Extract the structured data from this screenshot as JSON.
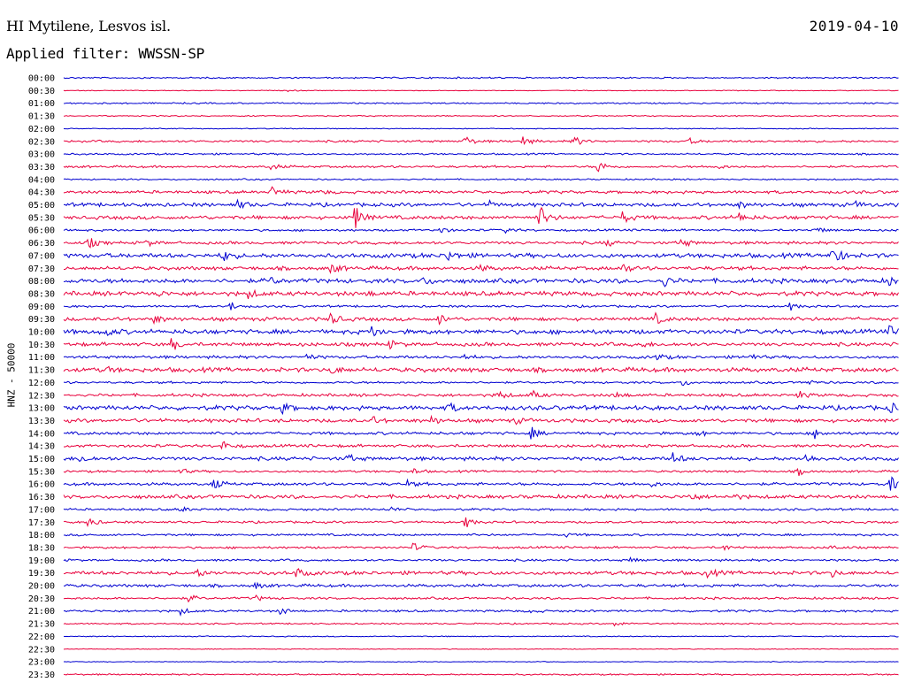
{
  "header": {
    "station": "HI Mytilene, Lesvos isl.",
    "date": "2019-04-10",
    "filter_label": "Applied filter: WWSSN-SP"
  },
  "axis": {
    "channel_label": "HNZ - 50000"
  },
  "colors": {
    "even_trace": "#0000d0",
    "odd_trace": "#e8003c"
  },
  "chart_data": {
    "type": "line",
    "title": "HI Mytilene, Lesvos isl.",
    "ylabel": "HNZ - 50000",
    "trace_interval_minutes": 30,
    "rows": [
      {
        "time": "00:00",
        "events": [],
        "noise": 1
      },
      {
        "time": "00:30",
        "events": [
          {
            "t": 0.27,
            "a": 1
          }
        ],
        "noise": 0.5
      },
      {
        "time": "01:00",
        "events": [],
        "noise": 1
      },
      {
        "time": "01:30",
        "events": [],
        "noise": 0.8
      },
      {
        "time": "02:00",
        "events": [],
        "noise": 0.6
      },
      {
        "time": "02:30",
        "events": [
          {
            "t": 0.48,
            "a": 6
          },
          {
            "t": 0.55,
            "a": 5
          },
          {
            "t": 0.61,
            "a": 7
          },
          {
            "t": 0.75,
            "a": 3
          }
        ],
        "noise": 1.5
      },
      {
        "time": "03:00",
        "events": [],
        "noise": 1.2
      },
      {
        "time": "03:30",
        "events": [
          {
            "t": 0.25,
            "a": 3
          },
          {
            "t": 0.64,
            "a": 7
          },
          {
            "t": 0.78,
            "a": 3
          }
        ],
        "noise": 1.5
      },
      {
        "time": "04:00",
        "events": [],
        "noise": 1
      },
      {
        "time": "04:30",
        "events": [
          {
            "t": 0.25,
            "a": 5
          },
          {
            "t": 0.31,
            "a": 2
          }
        ],
        "noise": 2
      },
      {
        "time": "05:00",
        "events": [
          {
            "t": 0.21,
            "a": 4
          },
          {
            "t": 0.51,
            "a": 3
          },
          {
            "t": 0.81,
            "a": 3
          },
          {
            "t": 0.95,
            "a": 3
          }
        ],
        "noise": 2.5
      },
      {
        "time": "05:30",
        "events": [
          {
            "t": 0.35,
            "a": 12
          },
          {
            "t": 0.57,
            "a": 13
          },
          {
            "t": 0.67,
            "a": 6
          },
          {
            "t": 0.81,
            "a": 5
          }
        ],
        "noise": 2.5
      },
      {
        "time": "06:00",
        "events": [
          {
            "t": 0.45,
            "a": 4
          },
          {
            "t": 0.53,
            "a": 3
          },
          {
            "t": 0.9,
            "a": 4
          }
        ],
        "noise": 1.5
      },
      {
        "time": "06:30",
        "events": [
          {
            "t": 0.03,
            "a": 6
          },
          {
            "t": 0.1,
            "a": 3
          },
          {
            "t": 0.65,
            "a": 4
          },
          {
            "t": 0.74,
            "a": 5
          }
        ],
        "noise": 2
      },
      {
        "time": "07:00",
        "events": [
          {
            "t": 0.19,
            "a": 7
          },
          {
            "t": 0.46,
            "a": 6
          },
          {
            "t": 0.92,
            "a": 14
          }
        ],
        "noise": 3
      },
      {
        "time": "07:30",
        "events": [
          {
            "t": 0.32,
            "a": 6
          },
          {
            "t": 0.5,
            "a": 3
          },
          {
            "t": 0.67,
            "a": 5
          }
        ],
        "noise": 2.5
      },
      {
        "time": "08:00",
        "events": [
          {
            "t": 0.25,
            "a": 3
          },
          {
            "t": 0.43,
            "a": 4
          },
          {
            "t": 0.72,
            "a": 5
          },
          {
            "t": 0.99,
            "a": 4
          }
        ],
        "noise": 3
      },
      {
        "time": "08:30",
        "events": [
          {
            "t": 0.11,
            "a": 3
          },
          {
            "t": 0.22,
            "a": 5
          },
          {
            "t": 0.36,
            "a": 3
          }
        ],
        "noise": 3
      },
      {
        "time": "09:00",
        "events": [
          {
            "t": 0.2,
            "a": 5
          },
          {
            "t": 0.87,
            "a": 4
          }
        ],
        "noise": 1.5
      },
      {
        "time": "09:30",
        "events": [
          {
            "t": 0.11,
            "a": 4
          },
          {
            "t": 0.32,
            "a": 7
          },
          {
            "t": 0.45,
            "a": 5
          },
          {
            "t": 0.71,
            "a": 5
          }
        ],
        "noise": 2.5
      },
      {
        "time": "10:00",
        "events": [
          {
            "t": 0.05,
            "a": 5
          },
          {
            "t": 0.37,
            "a": 5
          },
          {
            "t": 0.99,
            "a": 5
          }
        ],
        "noise": 3
      },
      {
        "time": "10:30",
        "events": [
          {
            "t": 0.13,
            "a": 6
          },
          {
            "t": 0.39,
            "a": 4
          },
          {
            "t": 0.69,
            "a": 3
          }
        ],
        "noise": 2.5
      },
      {
        "time": "11:00",
        "events": [
          {
            "t": 0.29,
            "a": 4
          },
          {
            "t": 0.48,
            "a": 3
          },
          {
            "t": 0.71,
            "a": 4
          },
          {
            "t": 0.82,
            "a": 5
          }
        ],
        "noise": 2
      },
      {
        "time": "11:30",
        "events": [
          {
            "t": 0.05,
            "a": 3
          },
          {
            "t": 0.32,
            "a": 5
          }
        ],
        "noise": 3
      },
      {
        "time": "12:00",
        "events": [
          {
            "t": 0.74,
            "a": 4
          },
          {
            "t": 0.89,
            "a": 4
          }
        ],
        "noise": 1.5
      },
      {
        "time": "12:30",
        "events": [
          {
            "t": 0.52,
            "a": 5
          },
          {
            "t": 0.56,
            "a": 5
          },
          {
            "t": 0.66,
            "a": 5
          },
          {
            "t": 0.88,
            "a": 4
          }
        ],
        "noise": 2
      },
      {
        "time": "13:00",
        "events": [
          {
            "t": 0.26,
            "a": 6
          },
          {
            "t": 0.46,
            "a": 5
          },
          {
            "t": 0.99,
            "a": 5
          }
        ],
        "noise": 3
      },
      {
        "time": "13:30",
        "events": [
          {
            "t": 0.37,
            "a": 4
          },
          {
            "t": 0.44,
            "a": 4
          },
          {
            "t": 0.54,
            "a": 3
          }
        ],
        "noise": 2.5
      },
      {
        "time": "14:00",
        "events": [
          {
            "t": 0.56,
            "a": 6
          },
          {
            "t": 0.76,
            "a": 3
          },
          {
            "t": 0.9,
            "a": 5
          }
        ],
        "noise": 2
      },
      {
        "time": "14:30",
        "events": [
          {
            "t": 0.19,
            "a": 5
          }
        ],
        "noise": 2
      },
      {
        "time": "15:00",
        "events": [
          {
            "t": 0.02,
            "a": 4
          },
          {
            "t": 0.34,
            "a": 4
          },
          {
            "t": 0.73,
            "a": 6
          },
          {
            "t": 0.89,
            "a": 5
          }
        ],
        "noise": 2.5
      },
      {
        "time": "15:30",
        "events": [
          {
            "t": 0.14,
            "a": 3
          },
          {
            "t": 0.42,
            "a": 3
          },
          {
            "t": 0.88,
            "a": 4
          }
        ],
        "noise": 1.5
      },
      {
        "time": "16:00",
        "events": [
          {
            "t": 0.18,
            "a": 6
          },
          {
            "t": 0.41,
            "a": 4
          },
          {
            "t": 0.7,
            "a": 4
          },
          {
            "t": 0.99,
            "a": 8
          }
        ],
        "noise": 2
      },
      {
        "time": "16:30",
        "events": [
          {
            "t": 0.75,
            "a": 4
          },
          {
            "t": 0.8,
            "a": 3
          }
        ],
        "noise": 2.5
      },
      {
        "time": "17:00",
        "events": [
          {
            "t": 0.14,
            "a": 3
          },
          {
            "t": 0.39,
            "a": 3
          }
        ],
        "noise": 1.5
      },
      {
        "time": "17:30",
        "events": [
          {
            "t": 0.03,
            "a": 5
          },
          {
            "t": 0.48,
            "a": 7
          }
        ],
        "noise": 1.5
      },
      {
        "time": "18:00",
        "events": [
          {
            "t": 0.6,
            "a": 2
          },
          {
            "t": 0.8,
            "a": 2
          }
        ],
        "noise": 1.5
      },
      {
        "time": "18:30",
        "events": [
          {
            "t": 0.42,
            "a": 4
          },
          {
            "t": 0.79,
            "a": 3
          },
          {
            "t": 0.92,
            "a": 3
          }
        ],
        "noise": 1.5
      },
      {
        "time": "19:00",
        "events": [
          {
            "t": 0.68,
            "a": 3
          }
        ],
        "noise": 1.5
      },
      {
        "time": "19:30",
        "events": [
          {
            "t": 0.16,
            "a": 4
          },
          {
            "t": 0.28,
            "a": 5
          },
          {
            "t": 0.77,
            "a": 5
          },
          {
            "t": 0.92,
            "a": 4
          }
        ],
        "noise": 2.5
      },
      {
        "time": "20:00",
        "events": [
          {
            "t": 0.23,
            "a": 3
          }
        ],
        "noise": 2
      },
      {
        "time": "20:30",
        "events": [
          {
            "t": 0.15,
            "a": 4
          },
          {
            "t": 0.23,
            "a": 3
          }
        ],
        "noise": 1.5
      },
      {
        "time": "21:00",
        "events": [
          {
            "t": 0.14,
            "a": 4
          },
          {
            "t": 0.26,
            "a": 4
          },
          {
            "t": 0.56,
            "a": 2
          }
        ],
        "noise": 1.5
      },
      {
        "time": "21:30",
        "events": [
          {
            "t": 0.66,
            "a": 4
          }
        ],
        "noise": 1
      },
      {
        "time": "22:00",
        "events": [],
        "noise": 0.7
      },
      {
        "time": "22:30",
        "events": [],
        "noise": 0.5
      },
      {
        "time": "23:00",
        "events": [],
        "noise": 0.5
      },
      {
        "time": "23:30",
        "events": [],
        "noise": 1
      }
    ]
  }
}
